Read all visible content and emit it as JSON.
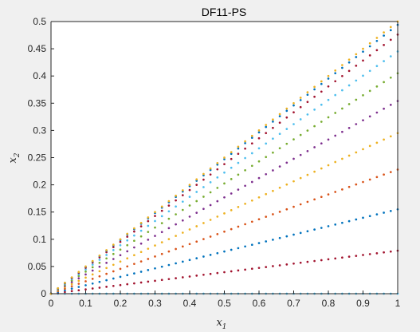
{
  "chart_data": {
    "type": "scatter",
    "title": "DF11-PS",
    "xlabel": {
      "base": "x",
      "sub": "1"
    },
    "ylabel": {
      "base": "x",
      "sub": "2"
    },
    "xlim": [
      0,
      1
    ],
    "ylim": [
      0,
      0.5
    ],
    "xticks": [
      "0",
      "0.1",
      "0.2",
      "0.3",
      "0.4",
      "0.5",
      "0.6",
      "0.7",
      "0.8",
      "0.9",
      "1"
    ],
    "yticks": [
      "0",
      "0.05",
      "0.1",
      "0.15",
      "0.2",
      "0.25",
      "0.3",
      "0.35",
      "0.4",
      "0.45",
      "0.5"
    ],
    "grid": false,
    "points_per_series": 51,
    "series": [
      {
        "slope": 0.0,
        "color": "#4dbeee"
      },
      {
        "slope": 0.079,
        "color": "#a2142f"
      },
      {
        "slope": 0.155,
        "color": "#0072bd"
      },
      {
        "slope": 0.228,
        "color": "#d95319"
      },
      {
        "slope": 0.295,
        "color": "#edb120"
      },
      {
        "slope": 0.354,
        "color": "#7e2f8e"
      },
      {
        "slope": 0.405,
        "color": "#77ac30"
      },
      {
        "slope": 0.445,
        "color": "#4dbeee"
      },
      {
        "slope": 0.476,
        "color": "#a2142f"
      },
      {
        "slope": 0.494,
        "color": "#0072bd"
      },
      {
        "slope": 0.5,
        "color": "#edb120"
      }
    ]
  }
}
